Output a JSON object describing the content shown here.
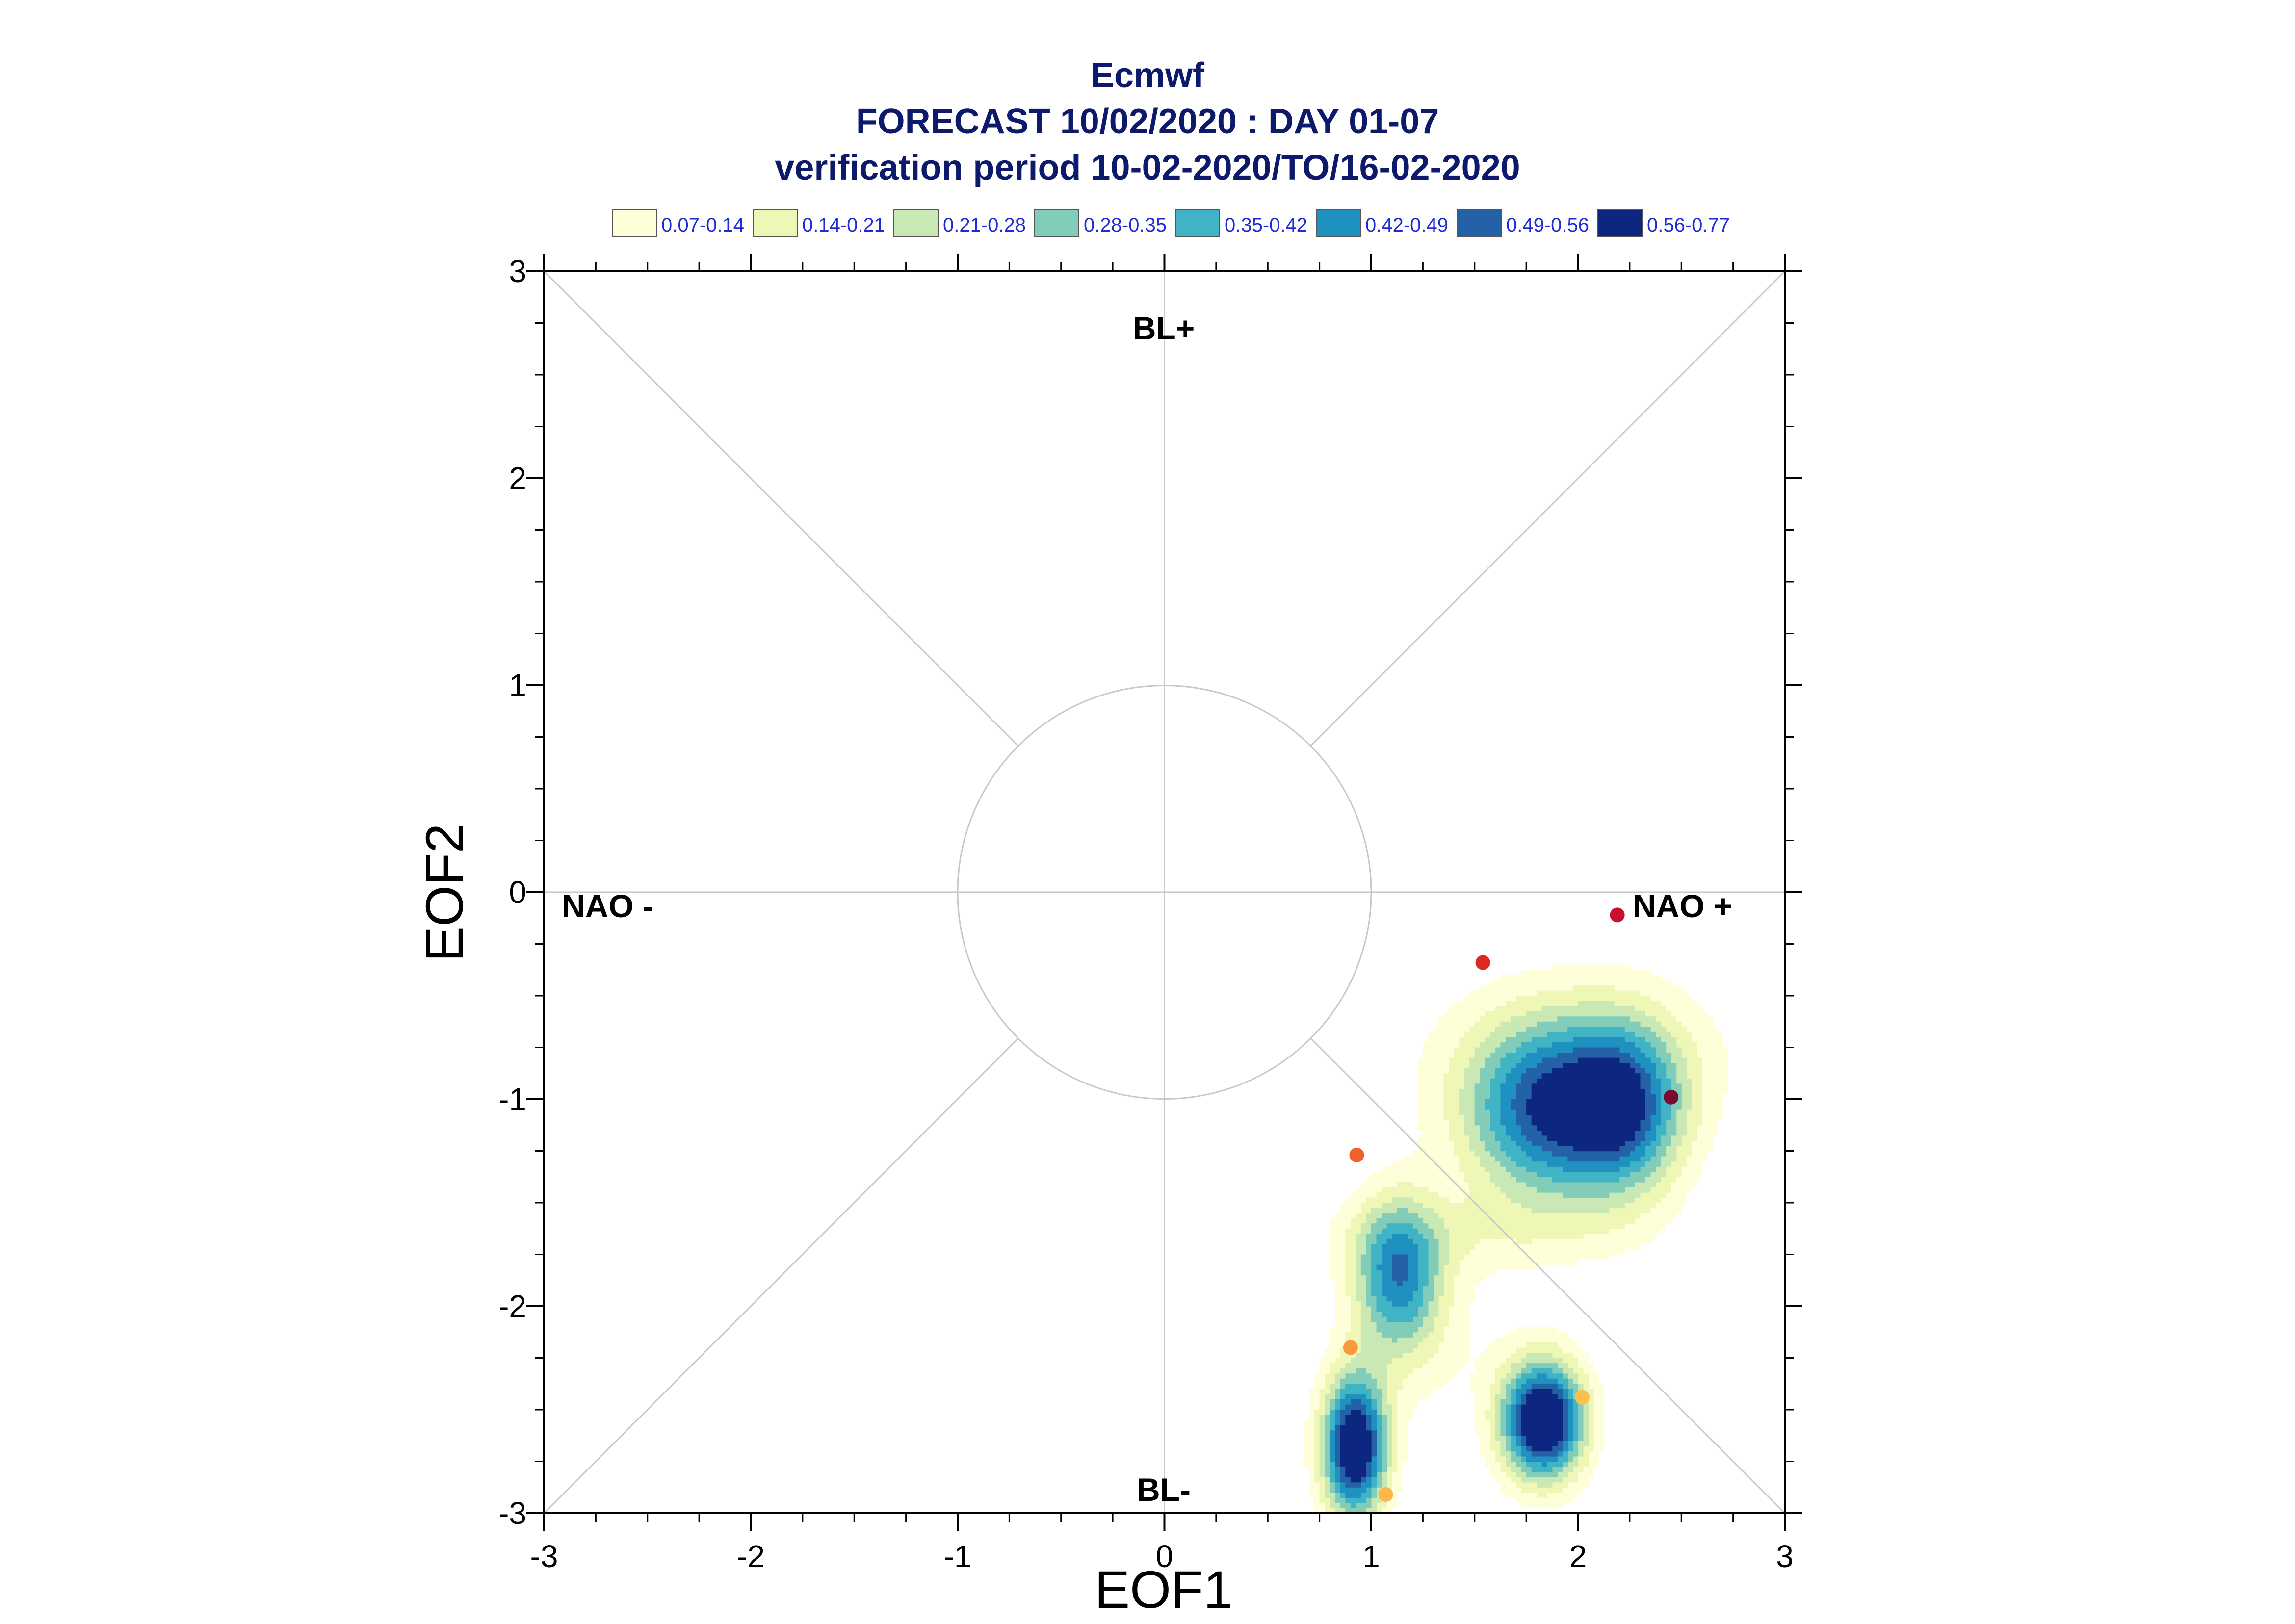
{
  "chart_data": {
    "type": "scatter",
    "title": "Ecmwf",
    "subtitle_lines": [
      "FORECAST 10/02/2020 : DAY 01-07",
      "verification period 10-02-2020/TO/16-02-2020"
    ],
    "xlabel": "EOF1",
    "ylabel": "EOF2",
    "xlim": [
      -3,
      3
    ],
    "ylim": [
      -3,
      3
    ],
    "x_ticks": [
      "-3",
      "-2",
      "-1",
      "0",
      "1",
      "2",
      "3"
    ],
    "y_ticks": [
      "-3",
      "-2",
      "-1",
      "0",
      "1",
      "2",
      "3"
    ],
    "regime_labels": {
      "top": "BL+",
      "bottom": "BL-",
      "left": "NAO -",
      "right": "NAO +"
    },
    "legend": [
      {
        "label": "0.07-0.14",
        "color": "#fefed8"
      },
      {
        "label": "0.14-0.21",
        "color": "#eef7b6"
      },
      {
        "label": "0.21-0.28",
        "color": "#c9e8b4"
      },
      {
        "label": "0.28-0.35",
        "color": "#82cdb9"
      },
      {
        "label": "0.35-0.42",
        "color": "#40b3c4"
      },
      {
        "label": "0.42-0.49",
        "color": "#1f91c0"
      },
      {
        "label": "0.49-0.56",
        "color": "#2462a8"
      },
      {
        "label": "0.56-0.77",
        "color": "#0d2781"
      }
    ],
    "density_peaks": [
      {
        "x": 1.82,
        "y": -1.07,
        "sx": 0.27,
        "sy": 0.3,
        "amp": 0.47
      },
      {
        "x": 2.22,
        "y": -1.05,
        "sx": 0.21,
        "sy": 0.29,
        "amp": 0.47
      },
      {
        "x": 2.03,
        "y": -0.78,
        "sx": 0.55,
        "sy": 0.28,
        "amp": 0.11
      },
      {
        "x": 1.13,
        "y": -1.85,
        "sx": 0.15,
        "sy": 0.26,
        "amp": 0.45
      },
      {
        "x": 0.92,
        "y": -2.68,
        "sx": 0.11,
        "sy": 0.24,
        "amp": 0.7
      },
      {
        "x": 1.83,
        "y": -2.55,
        "sx": 0.14,
        "sy": 0.2,
        "amp": 0.74
      },
      {
        "x": 1.48,
        "y": -1.65,
        "sx": 0.55,
        "sy": 0.14,
        "amp": 0.09
      },
      {
        "x": 1.3,
        "y": -2.2,
        "sx": 0.3,
        "sy": 0.3,
        "amp": 0.06
      }
    ],
    "points": [
      {
        "x": 2.19,
        "y": -0.11,
        "color": "#c7102e"
      },
      {
        "x": 1.54,
        "y": -0.34,
        "color": "#dc2a22"
      },
      {
        "x": 2.45,
        "y": -0.99,
        "color": "#7a0b2e"
      },
      {
        "x": 0.93,
        "y": -1.27,
        "color": "#f0602e"
      },
      {
        "x": 0.9,
        "y": -2.2,
        "color": "#f69a3c"
      },
      {
        "x": 2.02,
        "y": -2.44,
        "color": "#fbc14a"
      },
      {
        "x": 1.07,
        "y": -2.91,
        "color": "#fbb848"
      }
    ],
    "grid": "center cross, diagonals, unit circle",
    "colors": {
      "title": "#0d1a6b",
      "legend_text": "#1f2bd6",
      "guide_lines": "#c8c8c8"
    }
  }
}
